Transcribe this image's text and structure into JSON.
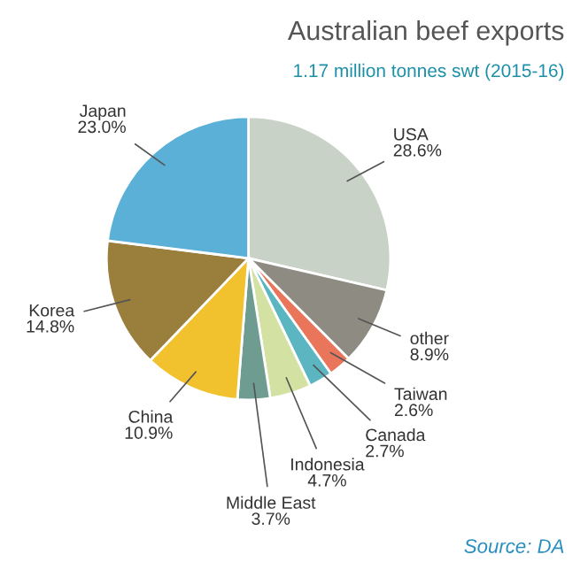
{
  "chart_data": {
    "type": "pie",
    "title": "Australian beef exports",
    "subtitle": "1.17 million tonnes swt (2015-16)",
    "categories": [
      "USA",
      "other",
      "Taiwan",
      "Canada",
      "Indonesia",
      "Middle East",
      "China",
      "Korea",
      "Japan"
    ],
    "values": [
      28.6,
      8.9,
      2.6,
      2.7,
      4.7,
      3.7,
      10.9,
      14.8,
      23.0
    ],
    "value_labels": [
      "28.6%",
      "8.9%",
      "2.6%",
      "2.7%",
      "4.7%",
      "3.7%",
      "10.9%",
      "14.8%",
      "23.0%"
    ],
    "colors": [
      "#c8d2c6",
      "#8e8b83",
      "#e9765a",
      "#5cb6c2",
      "#d3e2a2",
      "#6f9c90",
      "#f2c12e",
      "#9a7e3c",
      "#5ab0d6"
    ],
    "annotations": [
      "Source: DA"
    ]
  }
}
